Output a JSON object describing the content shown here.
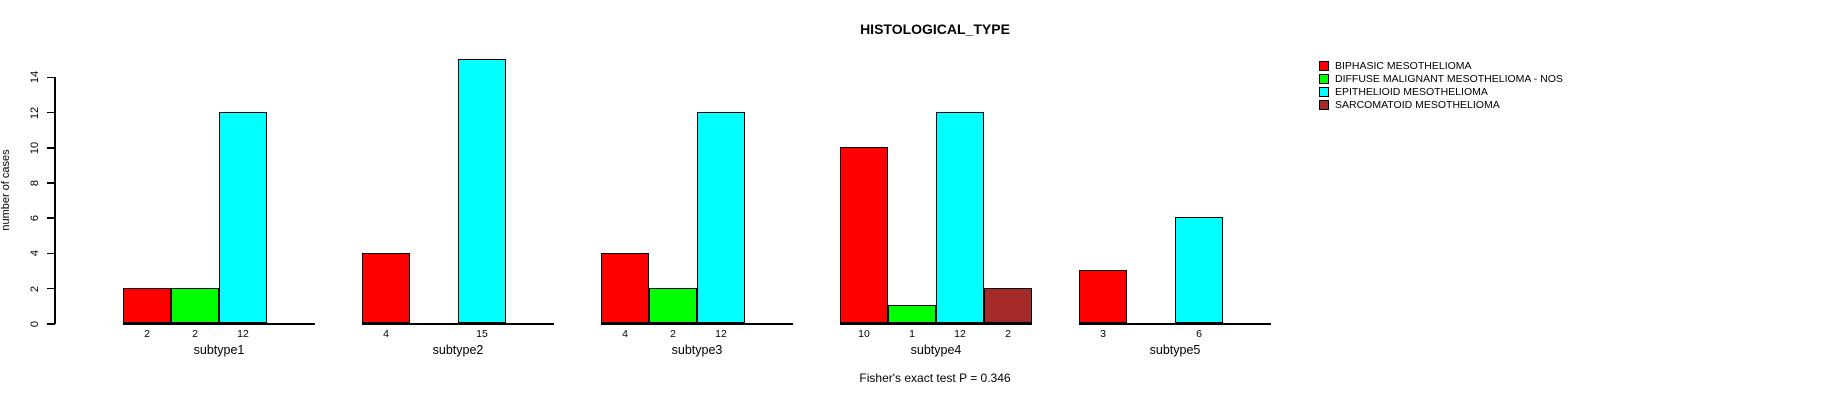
{
  "title": "HISTOLOGICAL_TYPE",
  "footer": "Fisher's exact test P = 0.346",
  "chart_data": {
    "type": "bar",
    "title": "HISTOLOGICAL_TYPE",
    "xlabel": "",
    "ylabel": "number of cases",
    "ylim": [
      0,
      15
    ],
    "yticks": [
      0,
      2,
      4,
      6,
      8,
      10,
      12,
      14
    ],
    "grid": false,
    "legend_position": "right",
    "bar_value_labels_shown": true,
    "zero_value_bars_hidden": true,
    "categories": [
      "subtype1",
      "subtype2",
      "subtype3",
      "subtype4",
      "subtype5"
    ],
    "series": [
      {
        "name": "BIPHASIC MESOTHELIOMA",
        "color": "#FF0000",
        "values": [
          2,
          4,
          4,
          10,
          3
        ]
      },
      {
        "name": "DIFFUSE MALIGNANT MESOTHELIOMA - NOS",
        "color": "#00FF00",
        "values": [
          2,
          0,
          2,
          1,
          0
        ]
      },
      {
        "name": "EPITHELIOID MESOTHELIOMA",
        "color": "#00FFFF",
        "values": [
          12,
          15,
          12,
          12,
          6
        ]
      },
      {
        "name": "SARCOMATOID MESOTHELIOMA",
        "color": "#A52A2A",
        "values": [
          0,
          0,
          0,
          2,
          0
        ]
      }
    ],
    "annotation": "Fisher's exact test P = 0.346",
    "bar_border_color": "#000000",
    "axis_color": "#000000",
    "background_color": "#FFFFFF"
  }
}
